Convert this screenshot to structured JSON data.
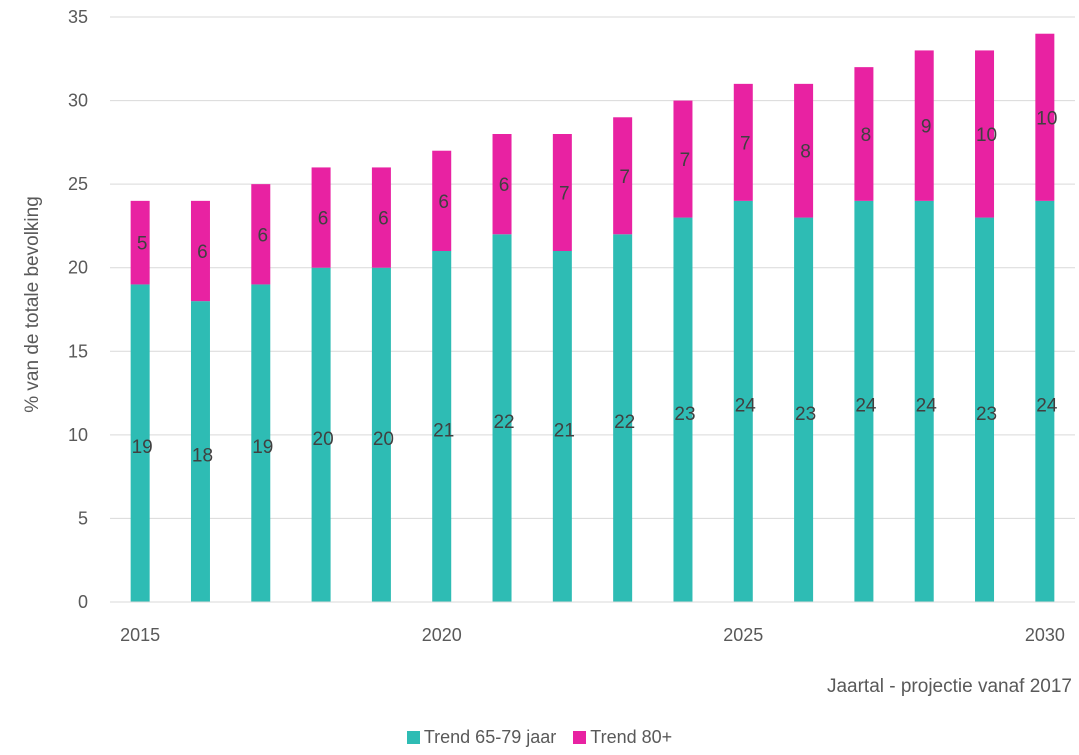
{
  "chart_data": {
    "type": "bar",
    "stacked": true,
    "x": [
      2015,
      2016,
      2017,
      2018,
      2019,
      2020,
      2021,
      2022,
      2023,
      2024,
      2025,
      2026,
      2027,
      2028,
      2029,
      2030
    ],
    "x_tick_labels": [
      "2015",
      "2020",
      "2025",
      "2030"
    ],
    "x_tick_values": [
      2015,
      2020,
      2025,
      2030
    ],
    "xlabel": "Jaartal - projectie vanaf 2017",
    "ylabel": "% van de totale bevolking",
    "ylim": [
      0,
      35
    ],
    "y_ticks": [
      0,
      5,
      10,
      15,
      20,
      25,
      30,
      35
    ],
    "grid": "horizontal",
    "legend_position": "bottom",
    "series": [
      {
        "name": "Trend 65-79 jaar",
        "color": "#2ebcb4",
        "values": [
          19,
          18,
          19,
          20,
          20,
          21,
          22,
          21,
          22,
          23,
          24,
          23,
          24,
          24,
          23,
          24
        ]
      },
      {
        "name": "Trend 80+",
        "color": "#e822a2",
        "values": [
          5,
          6,
          6,
          6,
          6,
          6,
          6,
          7,
          7,
          7,
          7,
          8,
          8,
          9,
          10,
          10
        ]
      }
    ]
  }
}
